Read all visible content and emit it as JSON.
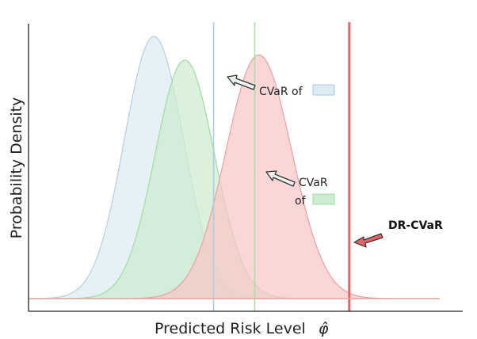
{
  "chart_data": {
    "type": "area",
    "title": "",
    "xlabel": "Predicted Risk Level",
    "xlabel_symbol": "φ̂",
    "ylabel": "Probability Density",
    "grid": false,
    "xlim": [
      0,
      10
    ],
    "ylim": [
      0,
      1
    ],
    "series": [
      {
        "kind": "distribution",
        "mean": 3.05,
        "sd": 0.72,
        "peak": 1.0,
        "fill": "#dcecf3",
        "stroke": "#b7cfdd"
      },
      {
        "kind": "distribution",
        "mean": 3.8,
        "sd": 0.72,
        "peak": 0.91,
        "fill": "#cdeccf",
        "stroke": "#9edca2"
      },
      {
        "kind": "distribution",
        "mean": 5.6,
        "sd": 0.8,
        "peak": 0.93,
        "fill": "#f9c6c6",
        "stroke": "#e9a0a0"
      }
    ],
    "vlines": [
      {
        "x": 4.5,
        "color": "#a9cfe6"
      },
      {
        "x": 5.5,
        "color": "#a6e0a5"
      },
      {
        "x": 7.8,
        "color": "#e36464",
        "width": 3
      }
    ],
    "annotations": [
      {
        "text": "CVaR of",
        "color": "#dcecf3",
        "swatch_border": "#a7c9de"
      },
      {
        "line1": "CVaR",
        "line2": "of",
        "color": "#cdeccf",
        "swatch_border": "#9edca2"
      },
      {
        "text": "DR-CVaR",
        "arrow_color": "#e36464"
      }
    ]
  }
}
